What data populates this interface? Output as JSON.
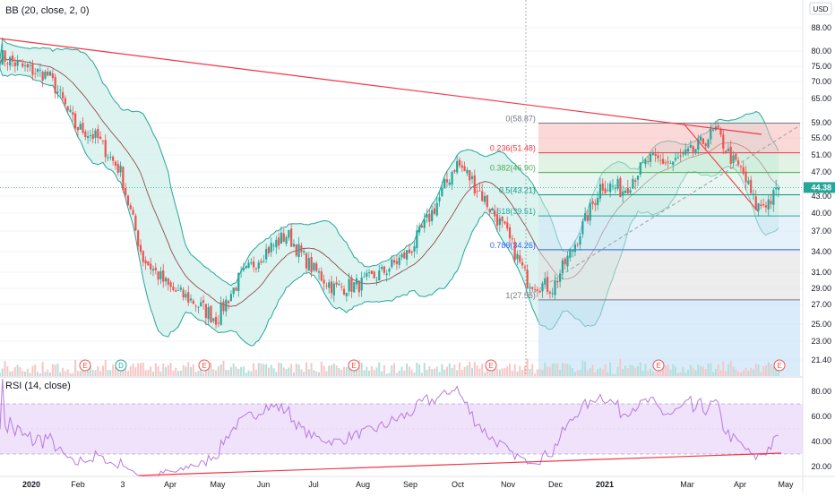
{
  "main_legend": "BB (20, close, 2, 0)",
  "rsi_legend": "RSI (14, close)",
  "currency": "USD",
  "last_price": "44.38",
  "colors": {
    "bb_line": "#26a69a",
    "bb_fill": "#cfeee9",
    "basis": "#8b3a3a",
    "up": "#26a69a",
    "down": "#ef5350",
    "trend": "#f23645",
    "rsi_line": "#b77ae0",
    "rsi_band": "#f0e2fb",
    "price_tag": "#26a69a"
  },
  "chart_data": [
    {
      "type": "candlestick",
      "title": "",
      "indicator": "Bollinger Bands (20, close, 2, 0)",
      "y_scale": "log",
      "y_ticks": [
        88.0,
        80.0,
        75.0,
        70.0,
        65.0,
        59.0,
        55.0,
        51.0,
        47.0,
        43.0,
        40.0,
        37.0,
        34.0,
        31.0,
        29.0,
        27.0,
        25.0,
        23.0,
        21.4
      ],
      "y_tick_labels": [
        "88.00",
        "80.00",
        "75.00",
        "70.00",
        "65.00",
        "59.00",
        "55.00",
        "51.00",
        "47.00",
        "43.00",
        "40.00",
        "37.00",
        "34.00",
        "31.00",
        "29.00",
        "27.00",
        "25.00",
        "23.00",
        "21.40"
      ],
      "x_tick_labels": [
        "2020",
        "Feb",
        "3",
        "Apr",
        "May",
        "Jun",
        "Jul",
        "Aug",
        "Sep",
        "Oct",
        "Nov",
        "Dec",
        "2021",
        "Mar",
        "Apr",
        "May"
      ],
      "approx_close_path": [
        {
          "date": "2019-12-15",
          "close": 78.5
        },
        {
          "date": "2020-01-01",
          "close": 74.0
        },
        {
          "date": "2020-01-15",
          "close": 72.0
        },
        {
          "date": "2020-02-01",
          "close": 58.0
        },
        {
          "date": "2020-02-15",
          "close": 55.0
        },
        {
          "date": "2020-03-01",
          "close": 47.0
        },
        {
          "date": "2020-03-15",
          "close": 33.0
        },
        {
          "date": "2020-04-01",
          "close": 29.0
        },
        {
          "date": "2020-04-15",
          "close": 27.5
        },
        {
          "date": "2020-05-01",
          "close": 25.5
        },
        {
          "date": "2020-05-15",
          "close": 30.0
        },
        {
          "date": "2020-06-01",
          "close": 34.0
        },
        {
          "date": "2020-06-15",
          "close": 36.5
        },
        {
          "date": "2020-07-01",
          "close": 31.5
        },
        {
          "date": "2020-07-15",
          "close": 29.0
        },
        {
          "date": "2020-08-01",
          "close": 29.5
        },
        {
          "date": "2020-08-15",
          "close": 31.0
        },
        {
          "date": "2020-09-01",
          "close": 34.0
        },
        {
          "date": "2020-09-15",
          "close": 40.0
        },
        {
          "date": "2020-10-01",
          "close": 49.0
        },
        {
          "date": "2020-10-15",
          "close": 44.0
        },
        {
          "date": "2020-11-01",
          "close": 37.0
        },
        {
          "date": "2020-11-15",
          "close": 30.0
        },
        {
          "date": "2020-12-01",
          "close": 29.0
        },
        {
          "date": "2020-12-15",
          "close": 35.0
        },
        {
          "date": "2021-01-01",
          "close": 45.0
        },
        {
          "date": "2021-01-15",
          "close": 44.0
        },
        {
          "date": "2021-02-01",
          "close": 50.0
        },
        {
          "date": "2021-02-15",
          "close": 49.0
        },
        {
          "date": "2021-03-01",
          "close": 52.0
        },
        {
          "date": "2021-03-15",
          "close": 57.0
        },
        {
          "date": "2021-03-25",
          "close": 50.0
        },
        {
          "date": "2021-04-01",
          "close": 47.0
        },
        {
          "date": "2021-04-10",
          "close": 41.0
        },
        {
          "date": "2021-04-20",
          "close": 42.5
        },
        {
          "date": "2021-04-25",
          "close": 44.38
        }
      ],
      "fibonacci": [
        {
          "ratio": "0",
          "price": 58.87,
          "label": "0(58.87)"
        },
        {
          "ratio": "0.236",
          "price": 51.48,
          "label": "0.236(51.48)"
        },
        {
          "ratio": "0.382",
          "price": 46.9,
          "label": "0.382(46.90)"
        },
        {
          "ratio": "0.5",
          "price": 43.21,
          "label": "0.5(43.21)"
        },
        {
          "ratio": "0.618",
          "price": 39.51,
          "label": "0.618(39.51)"
        },
        {
          "ratio": "0.786",
          "price": 34.26,
          "label": "0.786(34.26)"
        },
        {
          "ratio": "1",
          "price": 27.55,
          "label": "1(27.55)"
        }
      ],
      "earnings_markers": [
        "E",
        "D",
        "E",
        "E",
        "E",
        "E",
        "E"
      ],
      "last_price": 44.38
    },
    {
      "type": "line",
      "title": "",
      "indicator": "RSI (14, close)",
      "y_ticks": [
        80.0,
        60.0,
        40.0,
        20.0
      ],
      "y_tick_labels": [
        "80.00",
        "60.00",
        "40.00",
        "20.00"
      ],
      "band": [
        30,
        70
      ],
      "ylim": [
        10,
        90
      ]
    }
  ]
}
